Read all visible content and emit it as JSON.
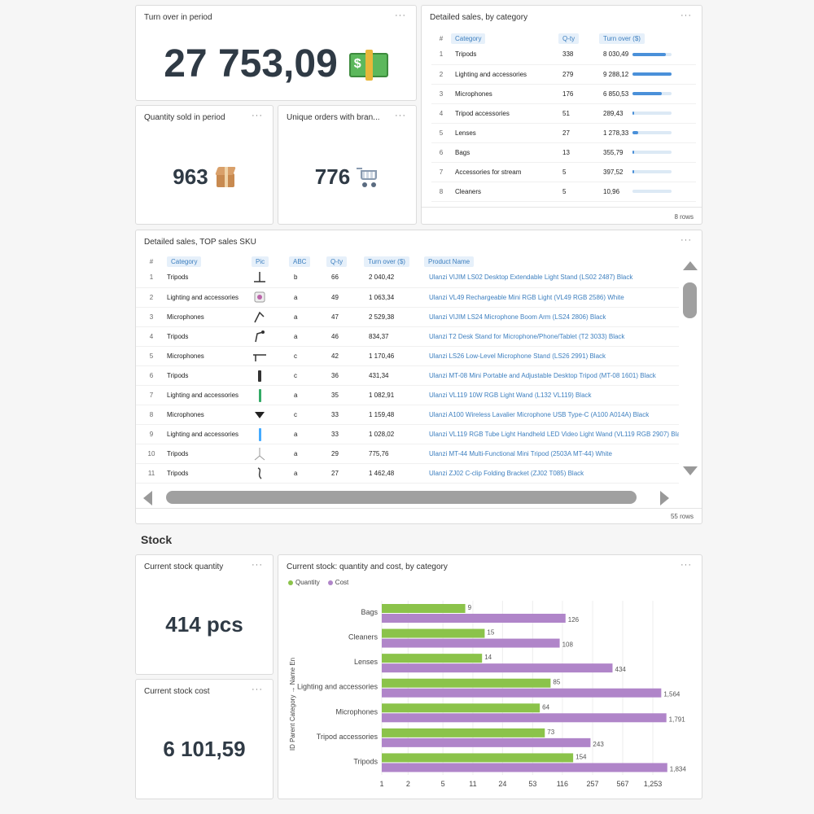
{
  "turnover": {
    "title": "Turn over in period",
    "value": "27 753,09",
    "icon": "money-with-wings-icon"
  },
  "quantity": {
    "title": "Quantity sold in period",
    "value": "963",
    "icon": "package-icon"
  },
  "orders": {
    "title": "Unique orders with bran...",
    "value": "776",
    "icon": "shopping-cart-icon"
  },
  "menu_label": "···",
  "category_table": {
    "title": "Detailed sales, by category",
    "columns": [
      "#",
      "Category",
      "Q-ty",
      "Turn over ($)"
    ],
    "rows": [
      {
        "n": "1",
        "category": "Tripods",
        "qty": "338",
        "turnover": "8 030,49",
        "fill": 0.86
      },
      {
        "n": "2",
        "category": "Lighting and accessories",
        "qty": "279",
        "turnover": "9 288,12",
        "fill": 1.0
      },
      {
        "n": "3",
        "category": "Microphones",
        "qty": "176",
        "turnover": "6 850,53",
        "fill": 0.74
      },
      {
        "n": "4",
        "category": "Tripod accessories",
        "qty": "51",
        "turnover": "289,43",
        "fill": 0.03
      },
      {
        "n": "5",
        "category": "Lenses",
        "qty": "27",
        "turnover": "1 278,33",
        "fill": 0.14
      },
      {
        "n": "6",
        "category": "Bags",
        "qty": "13",
        "turnover": "355,79",
        "fill": 0.04
      },
      {
        "n": "7",
        "category": "Accessories for stream",
        "qty": "5",
        "turnover": "397,52",
        "fill": 0.04
      },
      {
        "n": "8",
        "category": "Cleaners",
        "qty": "5",
        "turnover": "10,96",
        "fill": 0.0
      }
    ],
    "row_count": "8 rows"
  },
  "sku_table": {
    "title": "Detailed sales, TOP sales SKU",
    "columns": [
      "#",
      "Category",
      "Pic",
      "ABC",
      "Q-ty",
      "Turn over ($)",
      "Product Name"
    ],
    "rows": [
      {
        "n": "1",
        "category": "Tripods",
        "abc": "b",
        "qty": "66",
        "turnover": "2 040,42",
        "name": "Ulanzi VIJIM LS02 Desktop Extendable Light Stand (LS02 2487) Black"
      },
      {
        "n": "2",
        "category": "Lighting and accessories",
        "abc": "a",
        "qty": "49",
        "turnover": "1 063,34",
        "name": "Ulanzi VL49 Rechargeable Mini RGB Light (VL49 RGB 2586) White"
      },
      {
        "n": "3",
        "category": "Microphones",
        "abc": "a",
        "qty": "47",
        "turnover": "2 529,38",
        "name": "Ulanzi VIJIM LS24 Microphone Boom Arm (LS24 2806) Black"
      },
      {
        "n": "4",
        "category": "Tripods",
        "abc": "a",
        "qty": "46",
        "turnover": "834,37",
        "name": "Ulanzi T2 Desk Stand for Microphone/Phone/Tablet (T2 3033) Black"
      },
      {
        "n": "5",
        "category": "Microphones",
        "abc": "c",
        "qty": "42",
        "turnover": "1 170,46",
        "name": "Ulanzi LS26 Low-Level Microphone Stand (LS26 2991) Black"
      },
      {
        "n": "6",
        "category": "Tripods",
        "abc": "c",
        "qty": "36",
        "turnover": "431,34",
        "name": "Ulanzi MT-08 Mini Portable and Adjustable Desktop Tripod (MT-08 1601) Black"
      },
      {
        "n": "7",
        "category": "Lighting and accessories",
        "abc": "a",
        "qty": "35",
        "turnover": "1 082,91",
        "name": "Ulanzi VL119 10W RGB Light Wand (L132 VL119) Black"
      },
      {
        "n": "8",
        "category": "Microphones",
        "abc": "c",
        "qty": "33",
        "turnover": "1 159,48",
        "name": "Ulanzi A100 Wireless Lavalier Microphone USB Type-C (A100 A014A) Black"
      },
      {
        "n": "9",
        "category": "Lighting and accessories",
        "abc": "a",
        "qty": "33",
        "turnover": "1 028,02",
        "name": "Ulanzi VL119 RGB Tube Light Handheld LED Video Light Wand (VL119 RGB 2907) Bla"
      },
      {
        "n": "10",
        "category": "Tripods",
        "abc": "a",
        "qty": "29",
        "turnover": "775,76",
        "name": "Ulanzi MT-44 Multi-Functional Mini Tripod (2503A MT-44) White"
      },
      {
        "n": "11",
        "category": "Tripods",
        "abc": "a",
        "qty": "27",
        "turnover": "1 462,48",
        "name": "Ulanzi ZJ02 C-clip Folding Bracket (ZJ02 T085) Black"
      }
    ],
    "row_count": "55 rows"
  },
  "stock_section": {
    "title": "Stock"
  },
  "stock_qty": {
    "title": "Current stock quantity",
    "value": "414 pcs"
  },
  "stock_cost": {
    "title": "Current stock cost",
    "value": "6 101,59"
  },
  "chart_data": {
    "type": "bar",
    "orientation": "horizontal",
    "title": "Current stock: quantity and cost, by category",
    "ylabel": "ID Parent Category → Name En",
    "xlabel": "",
    "x_scale": "log",
    "x_ticks": [
      "1",
      "2",
      "5",
      "11",
      "24",
      "53",
      "116",
      "257",
      "567",
      "1,253"
    ],
    "categories": [
      "Bags",
      "Cleaners",
      "Lenses",
      "Lighting and accessories",
      "Microphones",
      "Tripod accessories",
      "Tripods"
    ],
    "series": [
      {
        "name": "Quantity",
        "color": "#8bc34a",
        "values": [
          9,
          15,
          14,
          85,
          64,
          73,
          154
        ],
        "labels": [
          "9",
          "15",
          "14",
          "85",
          "64",
          "73",
          "154"
        ]
      },
      {
        "name": "Cost",
        "color": "#b085c9",
        "values": [
          126,
          108,
          434,
          1564,
          1791,
          243,
          1834
        ],
        "labels": [
          "126",
          "108",
          "434",
          "1,564",
          "1,791",
          "243",
          "1,834"
        ]
      }
    ],
    "legend_position": "top-left"
  }
}
